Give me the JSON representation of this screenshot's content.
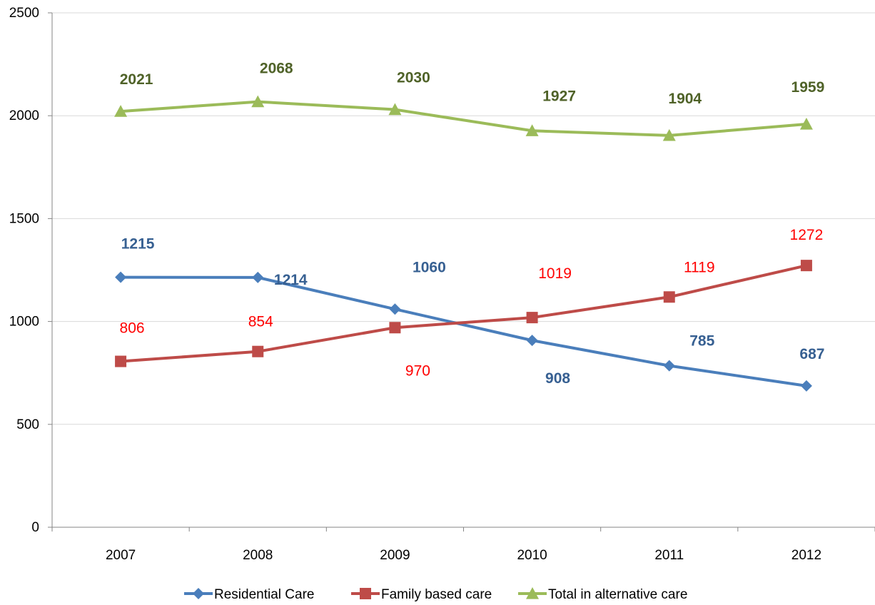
{
  "chart_data": {
    "type": "line",
    "title": "",
    "xlabel": "",
    "ylabel": "",
    "categories": [
      "2007",
      "2008",
      "2009",
      "2010",
      "2011",
      "2012"
    ],
    "ylim": [
      0,
      2500
    ],
    "yticks": [
      0,
      500,
      1000,
      1500,
      2000,
      2500
    ],
    "grid": "horizontal",
    "legend_position": "bottom",
    "series": [
      {
        "name": "Residential Care",
        "values": [
          1215,
          1214,
          1060,
          908,
          785,
          687
        ],
        "color": "#4A7EBB",
        "label_color": "#376092",
        "marker": "diamond",
        "labels_bold": true
      },
      {
        "name": "Family based care",
        "values": [
          806,
          854,
          970,
          1019,
          1119,
          1272
        ],
        "color": "#BE4B48",
        "label_color": "#FF0000",
        "marker": "square",
        "labels_bold": false
      },
      {
        "name": "Total in alternative care",
        "values": [
          2021,
          2068,
          2030,
          1927,
          1904,
          1959
        ],
        "color": "#9BBB59",
        "label_color": "#4F6228",
        "marker": "triangle",
        "labels_bold": true
      }
    ]
  }
}
